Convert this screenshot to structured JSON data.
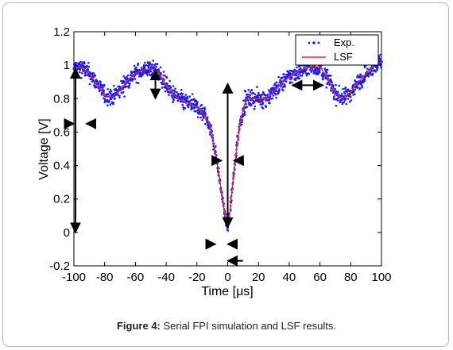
{
  "caption": {
    "label": "Figure 4:",
    "text": "Serial FPI simulation and LSF results."
  },
  "chart_data": {
    "type": "scatter",
    "title": "",
    "xlabel": "Time [μs]",
    "ylabel": "Voltage [V]",
    "xlim": [
      -100,
      100
    ],
    "ylim": [
      -0.2,
      1.2
    ],
    "xticks": [
      -100,
      -80,
      -60,
      -40,
      -20,
      0,
      20,
      40,
      60,
      80,
      100
    ],
    "xtick_labels": [
      "-100",
      "-80",
      "-60",
      "-40",
      "-20",
      "0",
      "20",
      "40",
      "60",
      "80",
      "100"
    ],
    "yticks": [
      -0.2,
      0,
      0.2,
      0.4,
      0.6,
      0.8,
      1,
      1.2
    ],
    "ytick_labels": [
      "-0.2",
      "0",
      "0.2",
      "0.4",
      "0.6",
      "0.8",
      "1",
      "1.2"
    ],
    "grid": false,
    "legend_position": "top-right",
    "series": [
      {
        "name": "Exp.",
        "style": "markers",
        "color": "#1a1aff",
        "noise": 0.045,
        "x": [
          -100,
          -95,
          -90,
          -85,
          -80,
          -75,
          -70,
          -65,
          -60,
          -55,
          -50,
          -45,
          -40,
          -35,
          -30,
          -25,
          -20,
          -15,
          -12,
          -10,
          -8,
          -6,
          -4,
          -2,
          -1,
          0,
          1,
          2,
          4,
          6,
          8,
          10,
          12,
          15,
          20,
          25,
          30,
          35,
          40,
          45,
          50,
          55,
          60,
          65,
          70,
          75,
          80,
          85,
          90,
          95,
          100
        ],
        "y": [
          0.98,
          0.99,
          0.95,
          0.89,
          0.82,
          0.81,
          0.85,
          0.91,
          0.95,
          0.97,
          0.98,
          0.96,
          0.88,
          0.82,
          0.79,
          0.77,
          0.75,
          0.7,
          0.65,
          0.58,
          0.48,
          0.36,
          0.24,
          0.12,
          0.06,
          0.03,
          0.08,
          0.18,
          0.35,
          0.52,
          0.65,
          0.74,
          0.79,
          0.8,
          0.8,
          0.8,
          0.84,
          0.89,
          0.93,
          0.96,
          0.98,
          0.99,
          0.99,
          0.92,
          0.83,
          0.8,
          0.84,
          0.9,
          0.95,
          1.0,
          1.02
        ]
      },
      {
        "name": "LSF",
        "style": "line",
        "color": "#e8283c",
        "x": [
          -100,
          -95,
          -90,
          -85,
          -80,
          -75,
          -70,
          -65,
          -60,
          -55,
          -50,
          -45,
          -40,
          -35,
          -30,
          -25,
          -20,
          -15,
          -12,
          -10,
          -8,
          -6,
          -4,
          -2,
          -1,
          0,
          1,
          2,
          4,
          6,
          8,
          10,
          12,
          15,
          20,
          25,
          30,
          35,
          40,
          45,
          50,
          55,
          60,
          65,
          70,
          75,
          80,
          85,
          90,
          95,
          100
        ],
        "y": [
          0.98,
          0.99,
          0.95,
          0.89,
          0.82,
          0.81,
          0.85,
          0.91,
          0.95,
          0.97,
          0.98,
          0.96,
          0.88,
          0.82,
          0.79,
          0.77,
          0.75,
          0.7,
          0.65,
          0.58,
          0.48,
          0.36,
          0.24,
          0.12,
          0.06,
          0.03,
          0.08,
          0.18,
          0.35,
          0.52,
          0.65,
          0.74,
          0.79,
          0.8,
          0.8,
          0.8,
          0.84,
          0.89,
          0.93,
          0.96,
          0.98,
          0.99,
          0.99,
          0.92,
          0.83,
          0.8,
          0.84,
          0.9,
          0.95,
          1.0,
          1.02
        ]
      }
    ],
    "annotations": [
      {
        "type": "vertical-arrow",
        "x": -99,
        "y1": 0,
        "y2": 0.98
      },
      {
        "type": "inward-arrows",
        "x1": -100,
        "x2": -92,
        "y": 0.65
      },
      {
        "type": "vertical-arrow",
        "x": -47,
        "y1": 0.8,
        "y2": 0.97
      },
      {
        "type": "vertical-arrow",
        "x": 0,
        "y1": 0.03,
        "y2": 0.89
      },
      {
        "type": "inward-arrows",
        "x1": -4,
        "x2": 4,
        "y": 0.43
      },
      {
        "type": "horizontal-arrow",
        "x1": 42,
        "x2": 62,
        "y": 0.88
      },
      {
        "type": "inward-arrows",
        "x1": -8,
        "x2": 0,
        "y": -0.07
      },
      {
        "type": "left-arrow",
        "x1": 0,
        "x2": 10,
        "y": -0.17
      }
    ]
  }
}
